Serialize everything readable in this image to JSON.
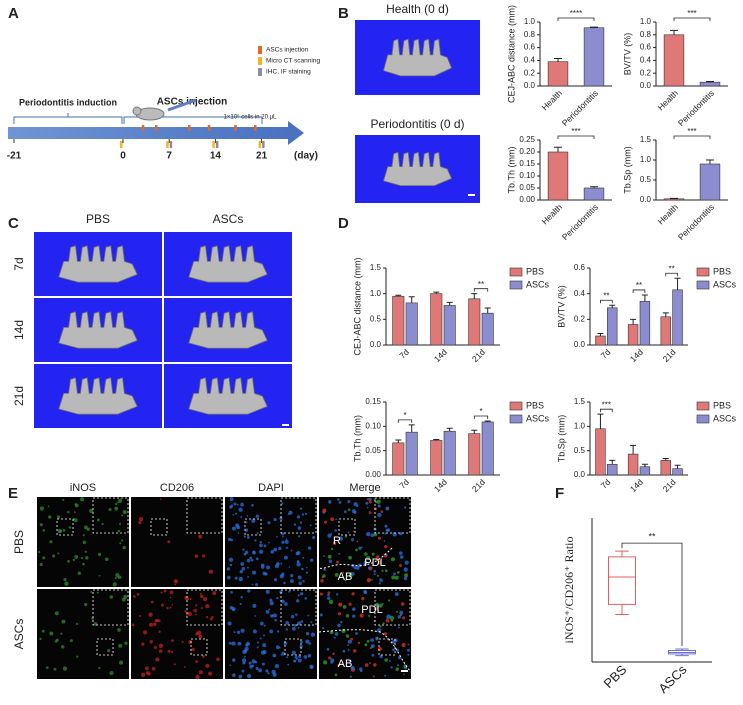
{
  "panel_labels": [
    "A",
    "B",
    "C",
    "D",
    "E",
    "F"
  ],
  "timeline": {
    "legend": [
      {
        "label": "ASCs injection",
        "color": "#e06a2c"
      },
      {
        "label": "Micro CT scanning",
        "color": "#f0b820"
      },
      {
        "label": "IHC, IF staining",
        "color": "#8c8c9c"
      }
    ],
    "phases": [
      "Periodontitis induction",
      "ASCs injection"
    ],
    "dose": "1×10⁶ cells in 20 μL",
    "ticks": [
      -21,
      0,
      7,
      14,
      21
    ],
    "unit": "(day)",
    "injection_days": [
      3,
      5,
      10,
      13,
      17,
      20
    ],
    "ct_days": [
      0,
      7,
      14,
      21
    ],
    "staining_days": [
      7,
      14,
      21
    ]
  },
  "panel_b": {
    "titles": [
      "Health (0 d)",
      "Periodontitis (0 d)"
    ]
  },
  "panel_c": {
    "columns": [
      "PBS",
      "ASCs"
    ],
    "rows": [
      "7d",
      "14d",
      "21d"
    ]
  },
  "panel_e": {
    "columns": [
      {
        "label": "iNOS",
        "color": "#22b022"
      },
      {
        "label": "CD206",
        "color": "#e02020"
      },
      {
        "label": "DAPI",
        "color": "#2a7fe0"
      },
      {
        "label": "Merge",
        "color": "#111111"
      }
    ],
    "rows": [
      "PBS",
      "ASCs"
    ],
    "region_labels": [
      [
        "R",
        "PDL",
        "AB"
      ],
      [
        "PDL",
        "AB"
      ]
    ]
  },
  "chart_data": [
    {
      "type": "bar",
      "y_label": "CEJ-ABC distance (mm)",
      "categories": [
        "Health",
        "Periodontitis"
      ],
      "values": [
        0.38,
        0.91
      ],
      "errors": [
        0.05,
        0.01
      ],
      "colors": [
        "#e07878",
        "#8c8cd0"
      ],
      "ylim": [
        0,
        1
      ],
      "yticks": [
        {
          "value": 0,
          "label": "0.0"
        },
        0.2,
        0.4,
        0.6,
        0.8,
        {
          "value": 1,
          "label": "1.0"
        }
      ],
      "significance": "****"
    },
    {
      "type": "bar",
      "y_label": "BV/TV (%)",
      "categories": [
        "Health",
        "Periodontitis"
      ],
      "values": [
        0.8,
        0.06
      ],
      "errors": [
        0.07,
        0.01
      ],
      "colors": [
        "#e07878",
        "#8c8cd0"
      ],
      "ylim": [
        0,
        1
      ],
      "yticks": [
        {
          "value": 0,
          "label": "0.0"
        },
        0.2,
        0.4,
        0.6,
        0.8,
        {
          "value": 1,
          "label": "1.0"
        }
      ],
      "significance": "***"
    },
    {
      "type": "bar",
      "y_label": "Tb.Th (mm)",
      "categories": [
        "Health",
        "Periodontitis"
      ],
      "values": [
        0.2,
        0.05
      ],
      "errors": [
        0.02,
        0.005
      ],
      "colors": [
        "#e07878",
        "#8c8cd0"
      ],
      "ylim": [
        0,
        0.25
      ],
      "yticks": [
        {
          "value": 0,
          "label": "0.00"
        },
        0.05,
        {
          "value": 0.1,
          "label": "0.10"
        },
        0.15,
        {
          "value": 0.2,
          "label": "0.20"
        },
        0.25
      ],
      "significance": "***"
    },
    {
      "type": "bar",
      "y_label": "Tb.Sp (mm)",
      "categories": [
        "Health",
        "Periodontitis"
      ],
      "values": [
        0.03,
        0.9
      ],
      "errors": [
        0.01,
        0.1
      ],
      "colors": [
        "#e07878",
        "#8c8cd0"
      ],
      "ylim": [
        0,
        1.5
      ],
      "yticks": [
        {
          "value": 0,
          "label": "0.0"
        },
        0.5,
        {
          "value": 1,
          "label": "1.0"
        },
        1.5
      ],
      "significance": "***"
    },
    {
      "type": "bar",
      "y_label": "CEJ-ABC distance (mm)",
      "categories": [
        "7d",
        "14d",
        "21d"
      ],
      "series": [
        {
          "name": "PBS",
          "color": "#e07878",
          "values": [
            0.95,
            1.0,
            0.9
          ],
          "errors": [
            0.02,
            0.03,
            0.1
          ]
        },
        {
          "name": "ASCs",
          "color": "#8c8cd0",
          "values": [
            0.82,
            0.77,
            0.62
          ],
          "errors": [
            0.12,
            0.06,
            0.1
          ]
        }
      ],
      "ylim": [
        0,
        1.5
      ],
      "yticks": [
        {
          "value": 0,
          "label": "0.0"
        },
        0.5,
        {
          "value": 1,
          "label": "1.0"
        },
        1.5
      ],
      "significance": [
        null,
        null,
        "**"
      ]
    },
    {
      "type": "bar",
      "y_label": "BV/TV (%)",
      "categories": [
        "7d",
        "14d",
        "21d"
      ],
      "series": [
        {
          "name": "PBS",
          "color": "#e07878",
          "values": [
            0.07,
            0.16,
            0.22
          ],
          "errors": [
            0.02,
            0.04,
            0.03
          ]
        },
        {
          "name": "ASCs",
          "color": "#8c8cd0",
          "values": [
            0.29,
            0.34,
            0.43
          ],
          "errors": [
            0.02,
            0.05,
            0.09
          ]
        }
      ],
      "ylim": [
        0,
        0.6
      ],
      "yticks": [
        {
          "value": 0,
          "label": "0.0"
        },
        0.2,
        0.4,
        0.6
      ],
      "significance": [
        "**",
        "**",
        "**"
      ]
    },
    {
      "type": "bar",
      "y_label": "Tb.Th (mm)",
      "categories": [
        "7d",
        "14d",
        "21d"
      ],
      "series": [
        {
          "name": "PBS",
          "color": "#e07878",
          "values": [
            0.066,
            0.071,
            0.085
          ],
          "errors": [
            0.006,
            0.002,
            0.007
          ]
        },
        {
          "name": "ASCs",
          "color": "#8c8cd0",
          "values": [
            0.088,
            0.09,
            0.109
          ],
          "errors": [
            0.015,
            0.006,
            0.002
          ]
        }
      ],
      "ylim": [
        0,
        0.15
      ],
      "yticks": [
        {
          "value": 0,
          "label": "0.00"
        },
        0.05,
        {
          "value": 0.1,
          "label": "0.10"
        },
        0.15
      ],
      "significance": [
        "*",
        null,
        "*"
      ]
    },
    {
      "type": "bar",
      "y_label": "Tb.Sp (mm)",
      "categories": [
        "7d",
        "14d",
        "21d"
      ],
      "series": [
        {
          "name": "PBS",
          "color": "#e07878",
          "values": [
            0.95,
            0.43,
            0.3
          ],
          "errors": [
            0.3,
            0.18,
            0.04
          ]
        },
        {
          "name": "ASCs",
          "color": "#8c8cd0",
          "values": [
            0.22,
            0.17,
            0.13
          ],
          "errors": [
            0.08,
            0.05,
            0.07
          ]
        }
      ],
      "ylim": [
        0,
        1.5
      ],
      "yticks": [
        {
          "value": 0,
          "label": "0.0"
        },
        0.5,
        {
          "value": 1,
          "label": "1.0"
        },
        1.5
      ],
      "significance": [
        "***",
        null,
        null
      ]
    },
    {
      "type": "box",
      "y_label": "iNOS⁺/CD206⁺ Ratio",
      "categories": [
        "PBS",
        "ASCs"
      ],
      "colors": [
        "#e06060",
        "#7070d0"
      ],
      "boxes": [
        {
          "min": 1.65,
          "q1": 2.0,
          "median": 2.95,
          "q3": 3.65,
          "max": 3.85
        },
        {
          "min": 0.22,
          "q1": 0.28,
          "median": 0.33,
          "q3": 0.4,
          "max": 0.45
        }
      ],
      "ylim": [
        0,
        5
      ],
      "significance": "**"
    }
  ]
}
